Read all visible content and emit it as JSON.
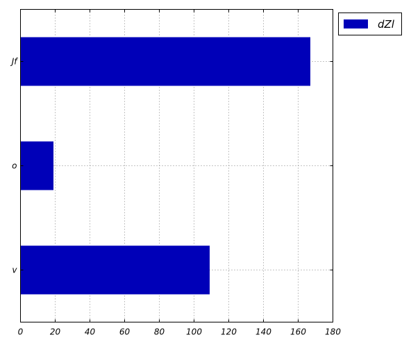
{
  "chart_data": {
    "type": "bar",
    "orientation": "horizontal",
    "categories": [
      "Jf",
      "o",
      "v"
    ],
    "series": [
      {
        "name": "dZl",
        "values": [
          167,
          19,
          109
        ],
        "color": "#0000b8"
      }
    ],
    "xlim": [
      0,
      180
    ],
    "xticks": [
      "0",
      "20",
      "40",
      "60",
      "80",
      "100",
      "120",
      "140",
      "160",
      "180"
    ],
    "grid": true,
    "legend_position": "outside top-right"
  }
}
